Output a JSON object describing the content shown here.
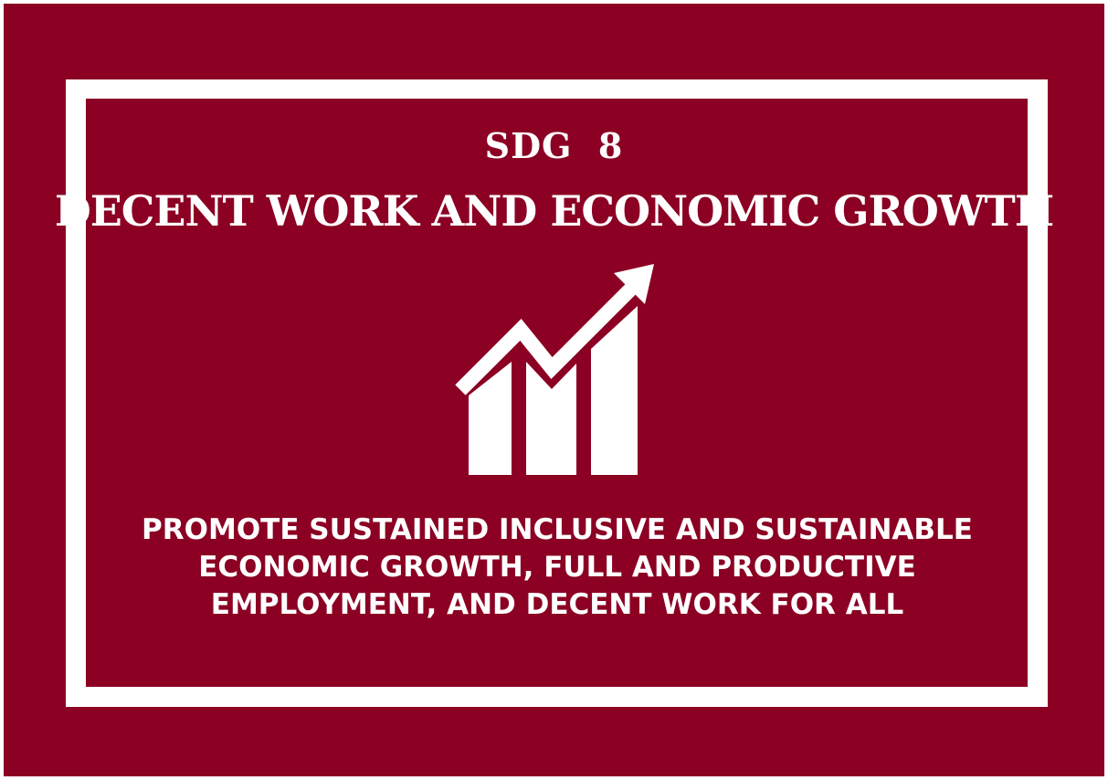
{
  "colors": {
    "background": "#8b0023",
    "border": "#ffffff",
    "text": "#ffffff"
  },
  "goal": {
    "number_label": "SDG  8",
    "title": "DECENT WORK AND ECONOMIC GROWTH",
    "icon": "growth-chart-icon",
    "description_lines": [
      "PROMOTE SUSTAINED INCLUSIVE AND SUSTAINABLE",
      "ECONOMIC GROWTH, FULL AND PRODUCTIVE",
      "EMPLOYMENT, AND DECENT WORK FOR ALL"
    ]
  }
}
